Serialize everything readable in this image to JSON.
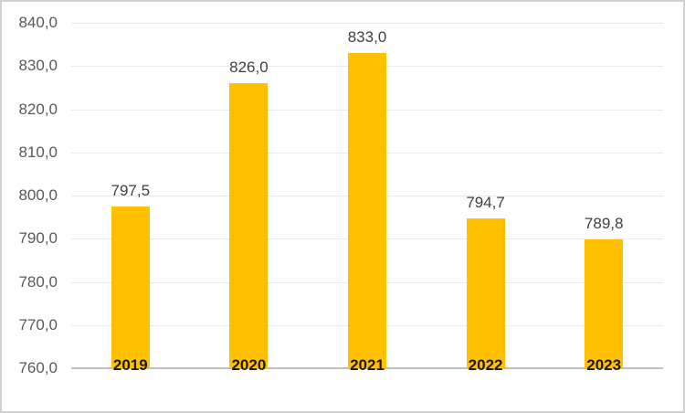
{
  "chart_data": {
    "type": "bar",
    "title": "",
    "xlabel": "",
    "ylabel": "",
    "categories": [
      "2019",
      "2020",
      "2021",
      "2022",
      "2023"
    ],
    "values": [
      797.5,
      826.0,
      833.0,
      794.7,
      789.8
    ],
    "value_labels": [
      "797,5",
      "826,0",
      "833,0",
      "794,7",
      "789,8"
    ],
    "ylim": [
      760,
      840
    ],
    "ytick_step": 10,
    "ytick_labels": [
      "840,0",
      "830,0",
      "820,0",
      "810,0",
      "800,0",
      "790,0",
      "780,0",
      "770,0",
      "760,0"
    ],
    "decimal_separator": ",",
    "grid": true,
    "legend": false,
    "bar_color": "#FFC000",
    "gridline_color": "#e9e9e9",
    "axisline_color": "#bfbfbf",
    "axis_label_color": "#595959",
    "data_label_color": "#404040",
    "category_label_color": "#1a1a1a",
    "frame_border_color": "#d0d0d0",
    "background_color": "#ffffff"
  }
}
